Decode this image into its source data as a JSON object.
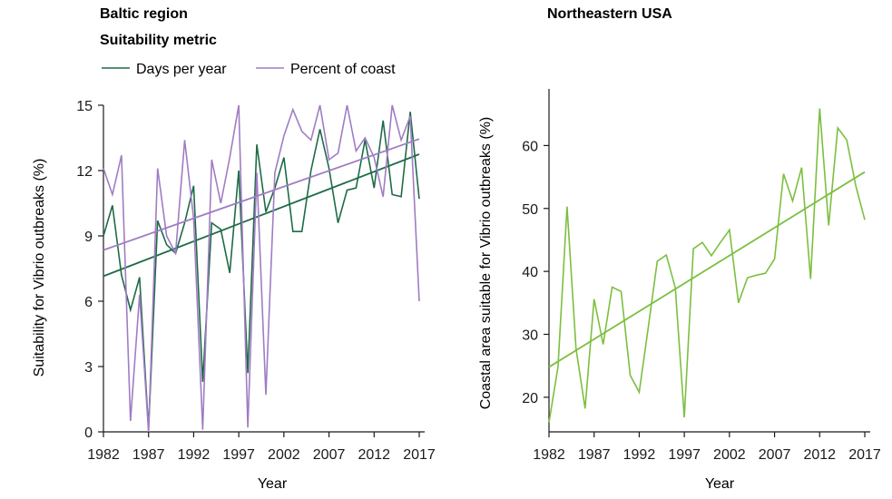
{
  "chart_data": [
    {
      "type": "line",
      "title": "Baltic region",
      "subtitle": "Suitability metric",
      "xlabel": "Year",
      "ylabel": "Suitability for Vibrio outbreaks (%)",
      "xlim": [
        1982,
        2017
      ],
      "ylim": [
        0,
        15
      ],
      "xticks": [
        1982,
        1987,
        1992,
        1997,
        2002,
        2007,
        2012,
        2017
      ],
      "yticks": [
        0,
        3,
        6,
        9,
        12,
        15
      ],
      "legend": "top",
      "x": [
        1982,
        1983,
        1984,
        1985,
        1986,
        1987,
        1988,
        1989,
        1990,
        1991,
        1992,
        1993,
        1994,
        1995,
        1996,
        1997,
        1998,
        1999,
        2000,
        2001,
        2002,
        2003,
        2004,
        2005,
        2006,
        2007,
        2008,
        2009,
        2010,
        2011,
        2012,
        2013,
        2014,
        2015,
        2016,
        2017
      ],
      "series": [
        {
          "name": "Days per year",
          "color": "#1e6b47",
          "values": [
            9.0,
            10.4,
            7.2,
            5.6,
            7.1,
            0.1,
            9.7,
            8.6,
            8.2,
            9.6,
            11.3,
            2.3,
            9.6,
            9.3,
            7.3,
            12.0,
            2.7,
            13.2,
            10.1,
            11.2,
            12.6,
            9.2,
            9.2,
            12.0,
            13.9,
            12.1,
            9.6,
            11.1,
            11.2,
            13.4,
            11.2,
            14.3,
            10.9,
            10.8,
            14.7,
            10.7
          ],
          "trend": [
            7.15,
            12.75
          ]
        },
        {
          "name": "Percent of coast",
          "color": "#a07cc4",
          "values": [
            12.1,
            10.9,
            12.7,
            0.5,
            6.3,
            0.0,
            12.1,
            9.0,
            8.2,
            13.4,
            9.8,
            0.1,
            12.5,
            10.5,
            12.6,
            15.0,
            0.2,
            11.9,
            1.7,
            11.9,
            13.6,
            14.8,
            13.8,
            13.4,
            15.0,
            12.5,
            12.8,
            15.0,
            12.9,
            13.5,
            12.6,
            10.8,
            15.0,
            13.4,
            14.5,
            6.0
          ],
          "trend": [
            8.35,
            13.45
          ]
        }
      ]
    },
    {
      "type": "line",
      "title": "Northeastern USA",
      "xlabel": "Year",
      "ylabel": "Coastal area suitable for Vibrio outbreaks (%)",
      "xlim": [
        1982,
        2017
      ],
      "ylim": [
        14.5,
        69
      ],
      "xticks": [
        1982,
        1987,
        1992,
        1997,
        2002,
        2007,
        2012,
        2017
      ],
      "yticks": [
        20,
        30,
        40,
        50,
        60
      ],
      "x": [
        1982,
        1983,
        1984,
        1985,
        1986,
        1987,
        1988,
        1989,
        1990,
        1991,
        1992,
        1993,
        1994,
        1995,
        1996,
        1997,
        1998,
        1999,
        2000,
        2001,
        2002,
        2003,
        2004,
        2005,
        2006,
        2007,
        2008,
        2009,
        2010,
        2011,
        2012,
        2013,
        2014,
        2015,
        2016,
        2017
      ],
      "series": [
        {
          "color": "#7cbf3f",
          "values": [
            16.0,
            24.8,
            50.3,
            27.7,
            18.2,
            35.6,
            28.4,
            37.5,
            36.8,
            23.5,
            20.8,
            31.1,
            41.6,
            42.6,
            37.4,
            16.8,
            43.6,
            44.6,
            42.5,
            44.6,
            46.6,
            35.0,
            39.0,
            39.4,
            39.7,
            42.0,
            55.5,
            51.2,
            56.5,
            38.8,
            65.9,
            47.3,
            62.8,
            60.9,
            53.6,
            48.2
          ],
          "trend": [
            24.8,
            55.8
          ]
        }
      ]
    }
  ]
}
